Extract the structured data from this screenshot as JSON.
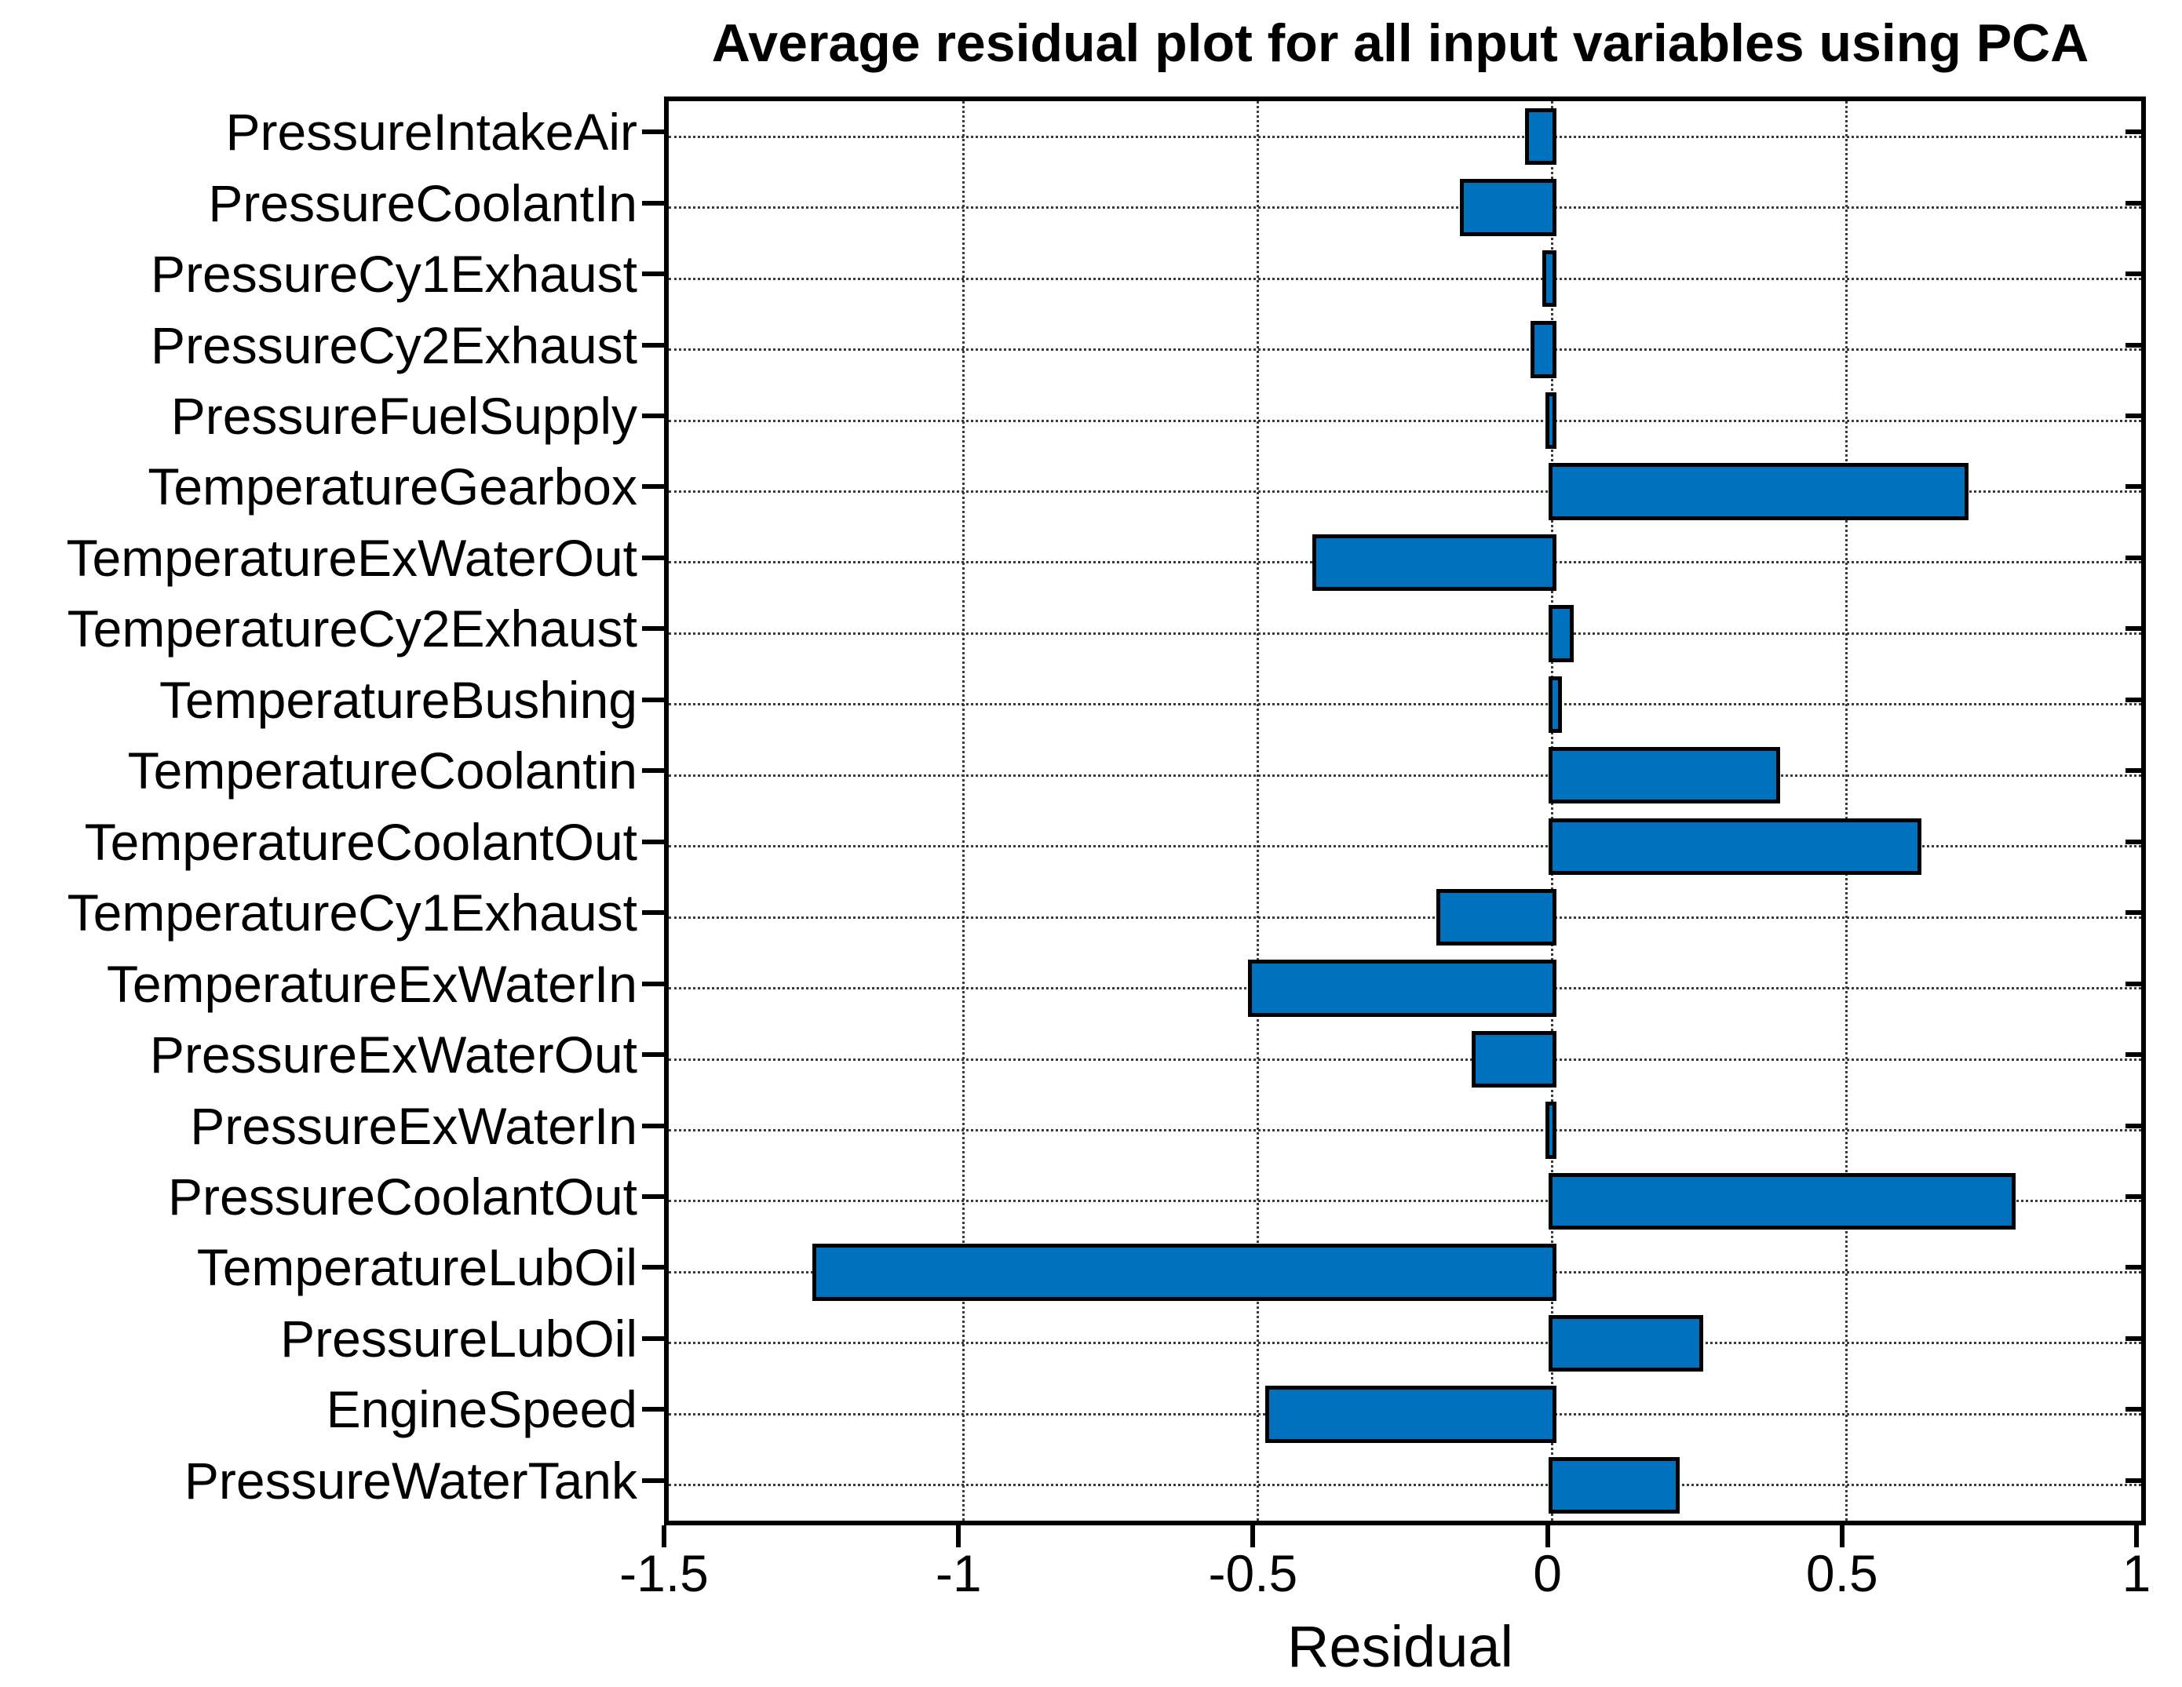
{
  "chart_data": {
    "type": "bar",
    "orientation": "horizontal",
    "title": "Average residual plot for all input variables using PCA",
    "xlabel": "Residual",
    "ylabel": "",
    "categories": [
      "PressureIntakeAir",
      "PressureCoolantIn",
      "PressureCy1Exhaust",
      "PressureCy2Exhaust",
      "PressureFuelSupply",
      "TemperatureGearbox",
      "TemperatureExWaterOut",
      "TemperatureCy2Exhaust",
      "TemperatureBushing",
      "TemperatureCoolantin",
      "TemperatureCoolantOut",
      "TemperatureCy1Exhaust",
      "TemperatureExWaterIn",
      "PressureExWaterOut",
      "PressureExWaterIn",
      "PressureCoolantOut",
      "TemperatureLubOil",
      "PressureLubOil",
      "EngineSpeed",
      "PressureWaterTank"
    ],
    "values": [
      -0.04,
      -0.15,
      -0.01,
      -0.03,
      -0.005,
      0.7,
      -0.4,
      0.03,
      0.01,
      0.38,
      0.62,
      -0.19,
      -0.51,
      -0.13,
      -0.005,
      0.78,
      -1.25,
      0.25,
      -0.48,
      0.21
    ],
    "xlim": [
      -1.5,
      1
    ],
    "xticks": [
      -1.5,
      -1,
      -0.5,
      0,
      0.5,
      1
    ],
    "xtick_labels": [
      "-1.5",
      "-1",
      "-0.5",
      "0",
      "0.5",
      "1"
    ],
    "grid": true,
    "bar_color": "#0072BD",
    "bar_edge_color": "#000000",
    "bar_width_fraction": 0.8
  }
}
